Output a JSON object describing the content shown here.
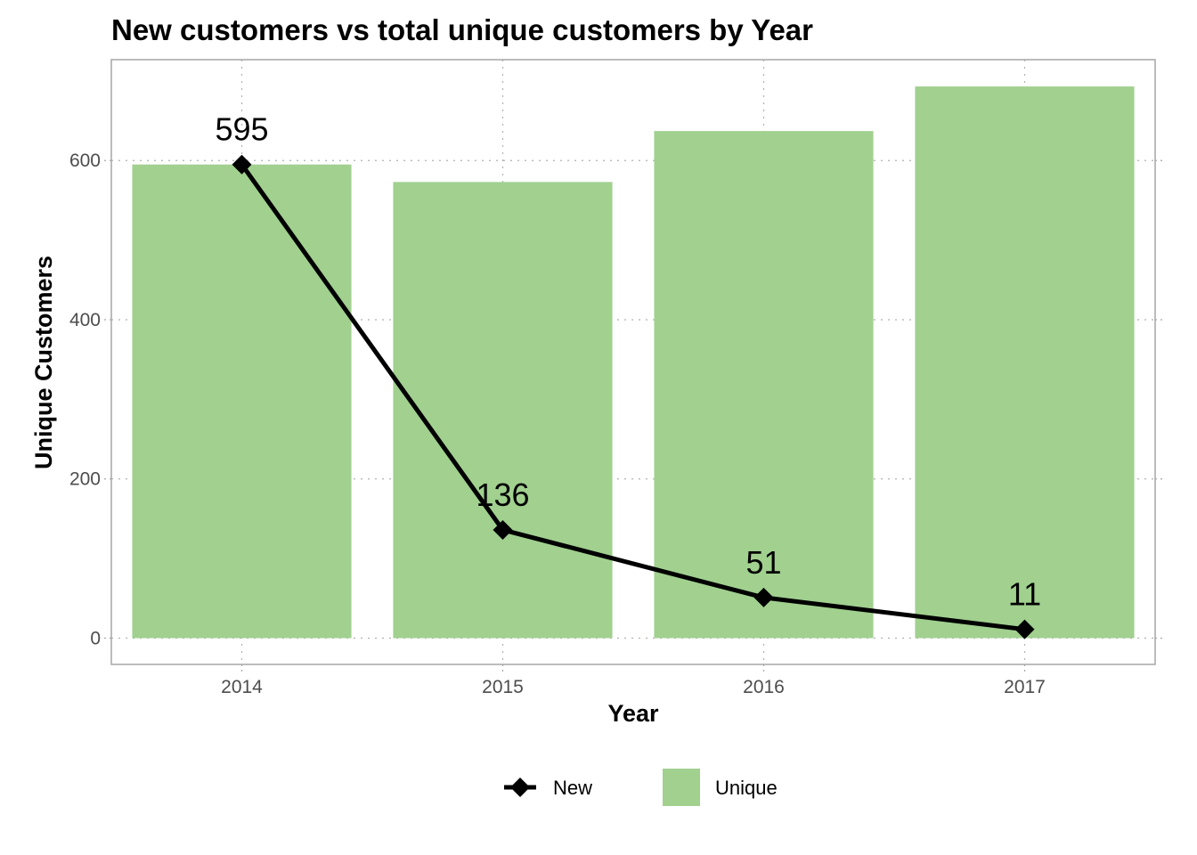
{
  "chart_data": {
    "type": "bar",
    "title": "New customers vs total unique customers by Year",
    "xlabel": "Year",
    "ylabel": "Unique Customers",
    "categories": [
      "2014",
      "2015",
      "2016",
      "2017"
    ],
    "ylim": [
      -80,
      790
    ],
    "yticks": [
      0,
      200,
      400,
      600
    ],
    "grid": true,
    "legend_position": "bottom",
    "series": [
      {
        "name": "Unique",
        "type": "bar",
        "values": [
          595,
          573,
          637,
          693
        ],
        "color": "#a1d08f"
      },
      {
        "name": "New",
        "type": "line",
        "marker": "diamond",
        "values": [
          595,
          136,
          51,
          11
        ],
        "labels": [
          "595",
          "136",
          "51",
          "11"
        ],
        "color": "#000000"
      }
    ]
  }
}
